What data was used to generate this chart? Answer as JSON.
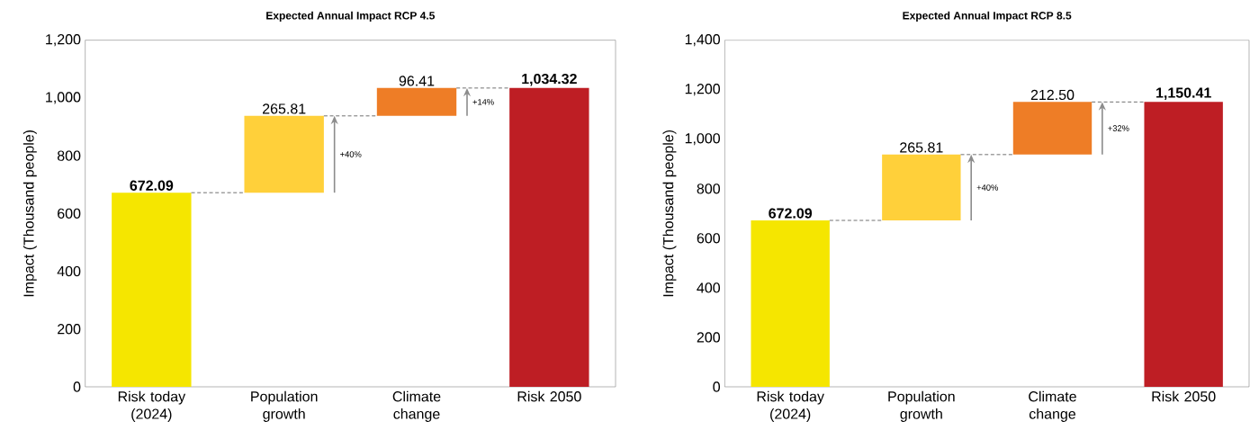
{
  "chart_data": [
    {
      "type": "bar",
      "title": "Expected Annual Impact RCP 4.5",
      "ylabel": "Impact (Thousand people)",
      "categories": [
        "Risk today (2024)",
        "Population growth",
        "Climate change",
        "Risk 2050"
      ],
      "values": [
        672.09,
        265.81,
        96.41,
        1034.32
      ],
      "base": [
        0,
        672.09,
        937.9,
        0
      ],
      "colors": [
        "#f5e600",
        "#ffd03a",
        "#ee7d26",
        "#be1e24"
      ],
      "value_labels": [
        "**672.09**",
        "265.81",
        "96.41",
        "**1,034.32**"
      ],
      "ylim": [
        0,
        1200
      ],
      "yticks": [
        0,
        200,
        400,
        600,
        800,
        {
          "value": 1000,
          "label": "1,000"
        },
        {
          "value": 1200,
          "label": "1,200"
        }
      ],
      "annotations": [
        "+40%",
        "+14%"
      ]
    },
    {
      "type": "bar",
      "title": "Expected Annual Impact RCP 8.5",
      "ylabel": "Impact (Thousand people)",
      "categories": [
        "Risk today (2024)",
        "Population growth",
        "Climate change",
        "Risk 2050"
      ],
      "values": [
        672.09,
        265.81,
        212.5,
        1150.41
      ],
      "base": [
        0,
        672.09,
        937.9,
        0
      ],
      "colors": [
        "#f5e600",
        "#ffd03a",
        "#ee7d26",
        "#be1e24"
      ],
      "value_labels": [
        "**672.09**",
        "265.81",
        "212.50",
        "**1,150.41**"
      ],
      "ylim": [
        0,
        1400
      ],
      "yticks": [
        0,
        200,
        400,
        600,
        800,
        {
          "value": 1000,
          "label": "1,000"
        },
        {
          "value": 1200,
          "label": "1,200"
        },
        {
          "value": 1400,
          "label": "1,400"
        }
      ],
      "annotations": [
        "+40%",
        "+32%"
      ]
    }
  ]
}
